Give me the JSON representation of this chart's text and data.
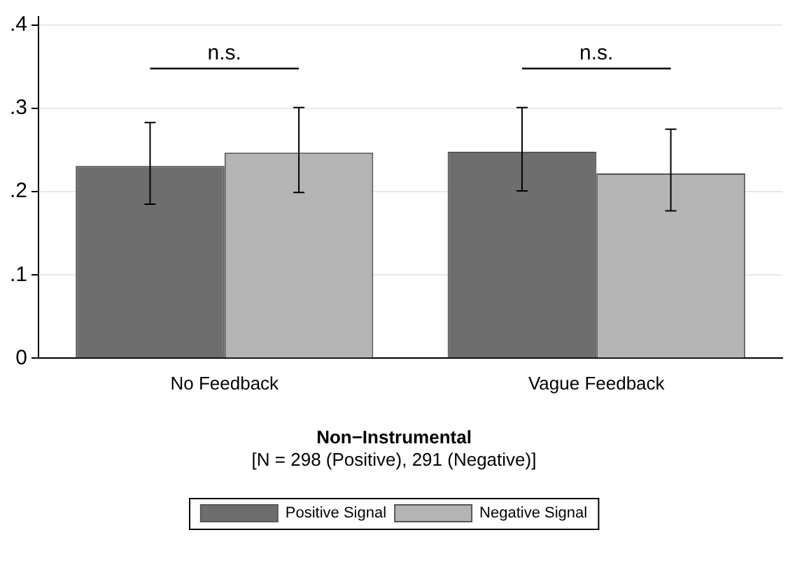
{
  "chart_data": {
    "type": "bar",
    "title": "Non−Instrumental",
    "subtitle": "[N = 298 (Positive), 291 (Negative)]",
    "categories": [
      "No Feedback",
      "Vague Feedback"
    ],
    "series": [
      {
        "name": "Positive Signal",
        "color": "#6e6e6e",
        "values": [
          0.231,
          0.248
        ],
        "errors": [
          [
            0.185,
            0.283
          ],
          [
            0.201,
            0.301
          ]
        ]
      },
      {
        "name": "Negative Signal",
        "color": "#b4b4b4",
        "values": [
          0.247,
          0.222
        ],
        "errors": [
          [
            0.199,
            0.301
          ],
          [
            0.177,
            0.275
          ]
        ]
      }
    ],
    "ylim": [
      0,
      0.41
    ],
    "yticks": [
      0,
      {
        "value": 0.1,
        "label": ".1"
      },
      {
        "value": 0.2,
        "label": ".2"
      },
      {
        "value": 0.3,
        "label": ".3"
      },
      {
        "value": 0.4,
        "label": ".4"
      }
    ],
    "annotations": [
      "n.s.",
      "n.s."
    ],
    "grid": "y",
    "legend": "bottom"
  }
}
